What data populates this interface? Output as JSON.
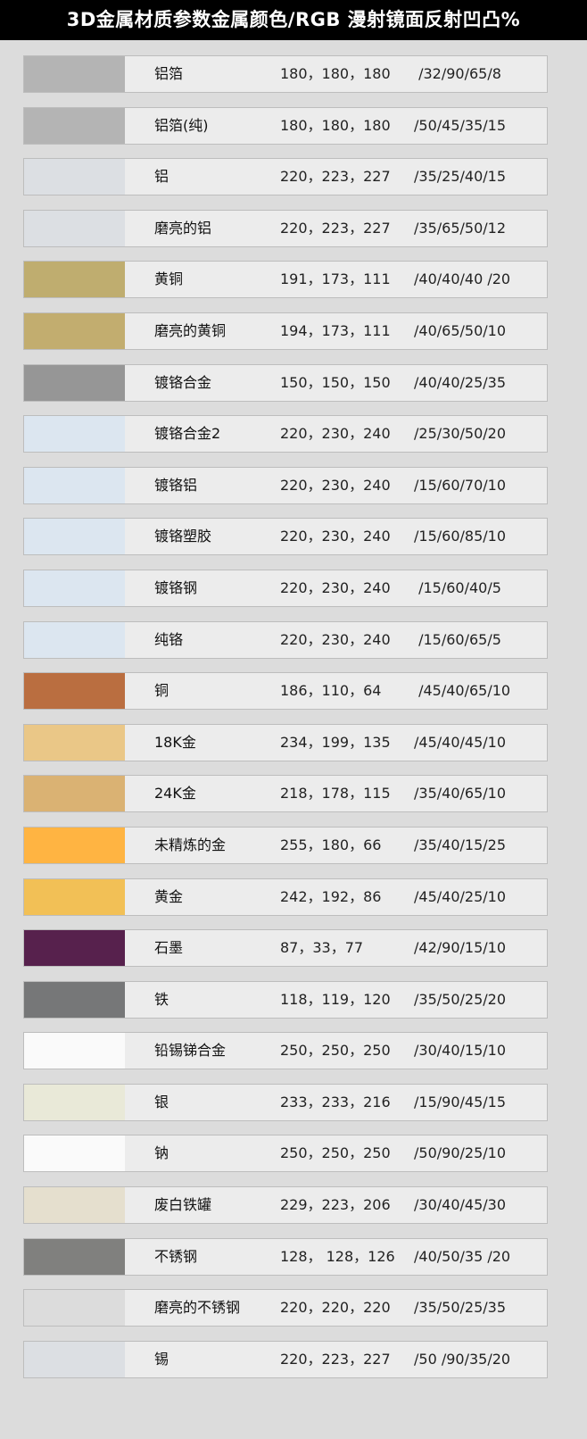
{
  "title": "3D金属材质参数金属颜色/RGB 漫射镜面反射凹凸%",
  "rows": [
    {
      "name": "铝箔",
      "rgb": "180，180，180",
      "params": " /32/90/65/8",
      "color": "#b4b4b4"
    },
    {
      "name": "铝箔(纯)",
      "rgb": "180，180，180",
      "params": "/50/45/35/15",
      "color": "#b4b4b4"
    },
    {
      "name": "铝",
      "rgb": "220，223，227",
      "params": "/35/25/40/15",
      "color": "#dcdfe3"
    },
    {
      "name": "磨亮的铝",
      "rgb": "220，223，227",
      "params": "/35/65/50/12",
      "color": "#dcdfe3"
    },
    {
      "name": "黄铜",
      "rgb": "191，173，111",
      "params": "/40/40/40 /20",
      "color": "#bfad6f"
    },
    {
      "name": "磨亮的黄铜",
      "rgb": "194，173，111",
      "params": "/40/65/50/10",
      "color": "#c2ad6f"
    },
    {
      "name": "镀铬合金",
      "rgb": "150，150，150",
      "params": "/40/40/25/35",
      "color": "#969696"
    },
    {
      "name": "镀铬合金2",
      "rgb": "220，230，240",
      "params": "/25/30/50/20",
      "color": "#dce6f0"
    },
    {
      "name": "镀铬铝",
      "rgb": "220，230，240",
      "params": "/15/60/70/10",
      "color": "#dce6f0"
    },
    {
      "name": "镀铬塑胶",
      "rgb": "220，230，240",
      "params": "/15/60/85/10",
      "color": "#dce6f0"
    },
    {
      "name": "镀铬钢",
      "rgb": "220，230，240",
      "params": " /15/60/40/5",
      "color": "#dce6f0"
    },
    {
      "name": "纯铬",
      "rgb": "220，230，240",
      "params": " /15/60/65/5",
      "color": "#dce6f0"
    },
    {
      "name": "铜",
      "rgb": "186，110，64",
      "params": " /45/40/65/10",
      "color": "#ba6e40"
    },
    {
      "name": "18K金",
      "rgb": "234，199，135",
      "params": "/45/40/45/10",
      "color": "#eac787"
    },
    {
      "name": "24K金",
      "rgb": "218，178，115",
      "params": "/35/40/65/10",
      "color": "#dab273"
    },
    {
      "name": "未精炼的金",
      "rgb": "255，180，66",
      "params": "/35/40/15/25",
      "color": "#ffb442"
    },
    {
      "name": "黄金",
      "rgb": "242，192，86",
      "params": "/45/40/25/10",
      "color": "#f2c056"
    },
    {
      "name": "石墨",
      "rgb": "87，33，77",
      "params": "/42/90/15/10",
      "color": "#57214d"
    },
    {
      "name": "铁",
      "rgb": "118，119，120",
      "params": "/35/50/25/20",
      "color": "#767778"
    },
    {
      "name": "铅锡锑合金",
      "rgb": "250，250，250",
      "params": "/30/40/15/10",
      "color": "#fafafa"
    },
    {
      "name": "银",
      "rgb": "233，233，216",
      "params": "/15/90/45/15",
      "color": "#e9e9d8"
    },
    {
      "name": "钠",
      "rgb": "250，250，250",
      "params": "/50/90/25/10",
      "color": "#fafafa"
    },
    {
      "name": "废白铁罐",
      "rgb": "229，223，206",
      "params": "/30/40/45/30",
      "color": "#e5dfce"
    },
    {
      "name": "不锈钢",
      "rgb": "128， 128，126",
      "params": "/40/50/35 /20",
      "color": "#80807e"
    },
    {
      "name": "磨亮的不锈钢",
      "rgb": "220，220，220",
      "params": "/35/50/25/35",
      "color": "#dcdcdc"
    },
    {
      "name": "锡",
      "rgb": "220，223，227",
      "params": "/50 /90/35/20",
      "color": "#dcdfe3"
    }
  ]
}
